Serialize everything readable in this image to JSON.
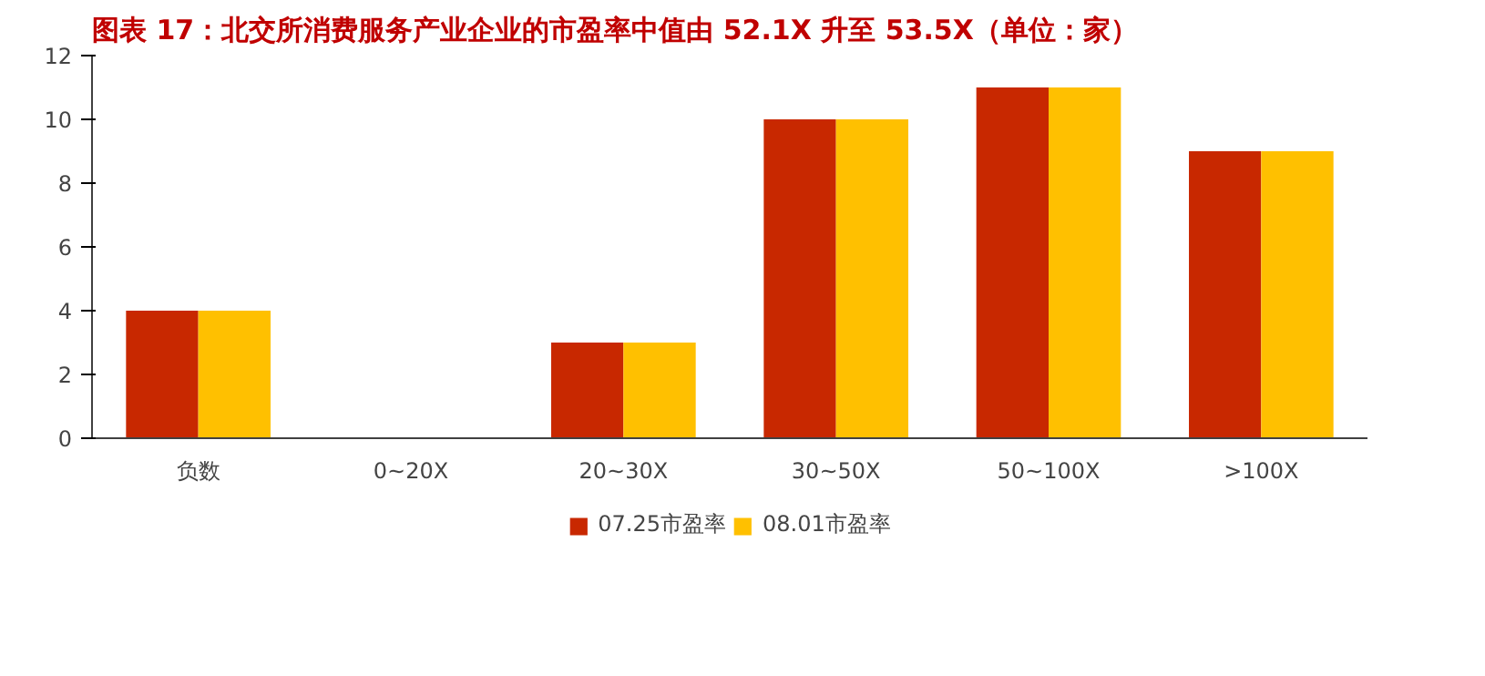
{
  "chart_data": {
    "type": "bar",
    "title": "图表 17：北交所消费服务产业企业的市盈率中值由 52.1X 升至 53.5X（单位：家）",
    "categories": [
      "负数",
      "0~20X",
      "20~30X",
      "30~50X",
      "50~100X",
      ">100X"
    ],
    "series": [
      {
        "name": "07.25市盈率",
        "color": "#c82800",
        "values": [
          4,
          0,
          3,
          10,
          11,
          9
        ]
      },
      {
        "name": "08.01市盈率",
        "color": "#ffc000",
        "values": [
          4,
          0,
          3,
          10,
          11,
          9
        ]
      }
    ],
    "ylim": [
      0,
      12
    ],
    "yticks": [
      0,
      2,
      4,
      6,
      8,
      10,
      12
    ],
    "grid": false,
    "legend": "bottom"
  }
}
